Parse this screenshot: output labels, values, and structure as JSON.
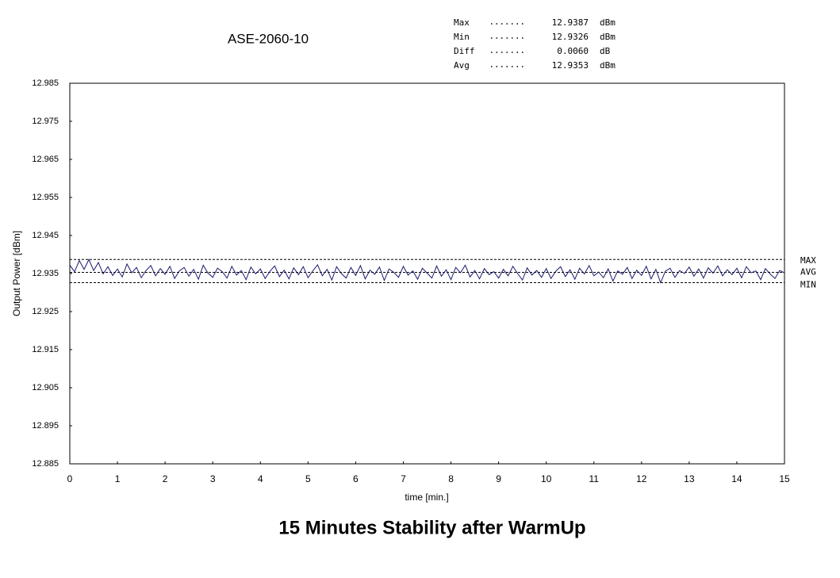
{
  "chart_data": {
    "type": "line",
    "title": "ASE-2060-10",
    "caption": "15 Minutes Stability after WarmUp",
    "x_label": "time [min.]",
    "y_label": "Output Power [dBm]",
    "xlim": [
      0,
      15
    ],
    "xticks": [
      0,
      1,
      2,
      3,
      4,
      5,
      6,
      7,
      8,
      9,
      10,
      11,
      12,
      13,
      14,
      15
    ],
    "ylim": [
      12.885,
      12.985
    ],
    "yticks": [
      12.885,
      12.895,
      12.905,
      12.915,
      12.925,
      12.935,
      12.945,
      12.955,
      12.965,
      12.975,
      12.985
    ],
    "grid": false,
    "stats": [
      {
        "name": "Max",
        "value": 12.9387,
        "unit": "dBm",
        "line_label": "MAX"
      },
      {
        "name": "Min",
        "value": 12.9326,
        "unit": "dBm",
        "line_label": "MIN"
      },
      {
        "name": "Diff",
        "value": {
          "value": 0.006,
          "label": "0.0060"
        },
        "unit": "dB"
      },
      {
        "name": "Avg",
        "value": 12.9353,
        "unit": "dBm",
        "line_label": "AVG"
      }
    ],
    "x": [
      0,
      0.1,
      0.2,
      0.3,
      0.4,
      0.5,
      0.6,
      0.7,
      0.8,
      0.9,
      1,
      1.1,
      1.2,
      1.3,
      1.4,
      1.5,
      1.6,
      1.7,
      1.8,
      1.9,
      2,
      2.1,
      2.2,
      2.3,
      2.4,
      2.5,
      2.6,
      2.7,
      2.8,
      2.9,
      3,
      3.1,
      3.2,
      3.3,
      3.4,
      3.5,
      3.6,
      3.7,
      3.8,
      3.9,
      4,
      4.1,
      4.2,
      4.3,
      4.4,
      4.5,
      4.6,
      4.7,
      4.8,
      4.9,
      5,
      5.1,
      5.2,
      5.3,
      5.4,
      5.5,
      5.6,
      5.7,
      5.8,
      5.9,
      6,
      6.1,
      6.2,
      6.3,
      6.4,
      6.5,
      6.6,
      6.7,
      6.8,
      6.9,
      7,
      7.1,
      7.2,
      7.3,
      7.4,
      7.5,
      7.6,
      7.7,
      7.8,
      7.9,
      8,
      8.1,
      8.2,
      8.3,
      8.4,
      8.5,
      8.6,
      8.7,
      8.8,
      8.9,
      9,
      9.1,
      9.2,
      9.3,
      9.4,
      9.5,
      9.6,
      9.7,
      9.8,
      9.9,
      10,
      10.1,
      10.2,
      10.3,
      10.4,
      10.5,
      10.6,
      10.7,
      10.8,
      10.9,
      11,
      11.1,
      11.2,
      11.3,
      11.4,
      11.5,
      11.6,
      11.7,
      11.8,
      11.9,
      12,
      12.1,
      12.2,
      12.3,
      12.4,
      12.5,
      12.6,
      12.7,
      12.8,
      12.9,
      13,
      13.1,
      13.2,
      13.3,
      13.4,
      13.5,
      13.6,
      13.7,
      13.8,
      13.9,
      14,
      14.1,
      14.2,
      14.3,
      14.4,
      14.5,
      14.6,
      14.7,
      14.8,
      14.9,
      15
    ],
    "series": [
      {
        "name": "Output Power",
        "color": "#1a1a6e",
        "values": [
          12.9372,
          12.9355,
          12.9384,
          12.9361,
          12.9387,
          12.9358,
          12.9379,
          12.9349,
          12.9368,
          12.9345,
          12.9362,
          12.9341,
          12.9375,
          12.9352,
          12.9366,
          12.9339,
          12.9358,
          12.9371,
          12.9344,
          12.9363,
          12.9348,
          12.9369,
          12.9337,
          12.9357,
          12.9366,
          12.9343,
          12.9361,
          12.9335,
          12.9372,
          12.9351,
          12.934,
          12.9364,
          12.9355,
          12.9338,
          12.9369,
          12.9346,
          12.9358,
          12.9334,
          12.9367,
          12.9349,
          12.9362,
          12.9337,
          12.9356,
          12.937,
          12.9342,
          12.9359,
          12.9336,
          12.9365,
          12.9347,
          12.9368,
          12.9339,
          12.9357,
          12.9373,
          12.9344,
          12.9361,
          12.9333,
          12.9368,
          12.935,
          12.9338,
          12.9366,
          12.9345,
          12.9371,
          12.9336,
          12.9359,
          12.9348,
          12.9367,
          12.9332,
          12.9362,
          12.9353,
          12.934,
          12.9369,
          12.9346,
          12.9357,
          12.9335,
          12.9364,
          12.9351,
          12.9338,
          12.937,
          12.9343,
          12.936,
          12.9334,
          12.9366,
          12.9352,
          12.9372,
          12.9341,
          12.9358,
          12.9336,
          12.9363,
          12.9347,
          12.9355,
          12.9338,
          12.9361,
          12.9344,
          12.9369,
          12.935,
          12.9333,
          12.9365,
          12.9346,
          12.9358,
          12.934,
          12.9363,
          12.9337,
          12.9356,
          12.9368,
          12.9342,
          12.936,
          12.9335,
          12.9364,
          12.9349,
          12.9371,
          12.9344,
          12.9354,
          12.9339,
          12.9362,
          12.933,
          12.9357,
          12.9348,
          12.9366,
          12.9337,
          12.9359,
          12.9345,
          12.9369,
          12.9336,
          12.9361,
          12.9326,
          12.9356,
          12.9364,
          12.934,
          12.9358,
          12.935,
          12.9367,
          12.9343,
          12.9362,
          12.9338,
          12.9365,
          12.9351,
          12.937,
          12.9344,
          12.936,
          12.9347,
          12.9364,
          12.9339,
          12.9368,
          12.9352,
          12.9357,
          12.9334,
          12.9363,
          12.9349,
          12.9337,
          12.9358,
          12.9352
        ]
      }
    ]
  }
}
